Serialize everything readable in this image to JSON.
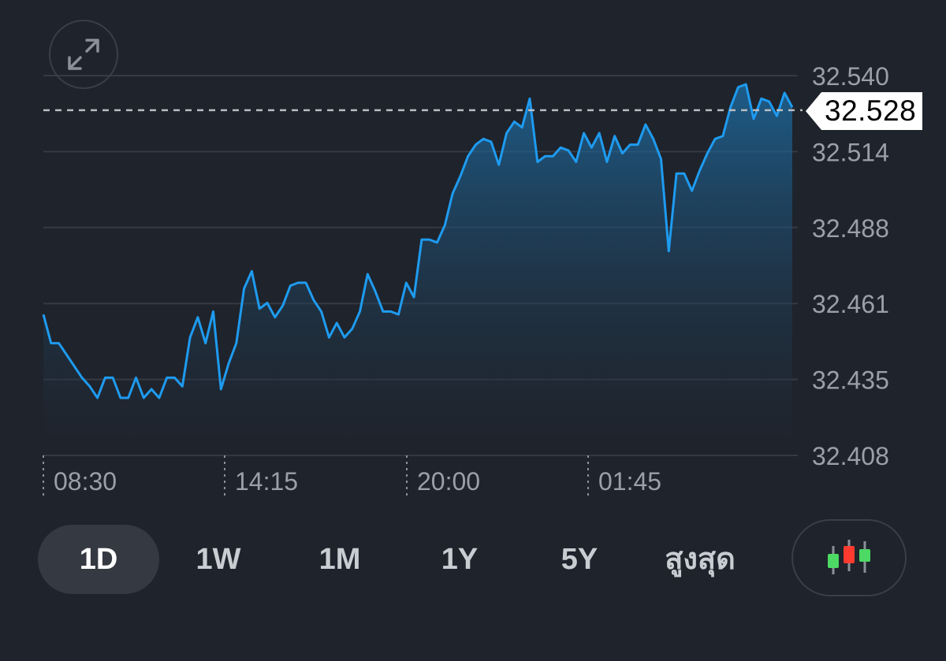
{
  "current_price": {
    "label": "32.528",
    "value": 32.528
  },
  "ranges": [
    {
      "label": "1D",
      "active": true
    },
    {
      "label": "1W",
      "active": false
    },
    {
      "label": "1M",
      "active": false
    },
    {
      "label": "1Y",
      "active": false
    },
    {
      "label": "5Y",
      "active": false
    },
    {
      "label": "สูงสุด",
      "active": false
    }
  ],
  "icons": {
    "expand": "expand-arrows-icon",
    "chart_type": "candlestick-icon"
  },
  "colors": {
    "background": "#1f232b",
    "line": "#1e9bf0",
    "grid": "#353a43",
    "axis_text": "#9aa0a8",
    "candle_up": "#4cd964",
    "candle_down": "#ff3b30"
  },
  "chart_data": {
    "type": "area",
    "title": "",
    "xlabel": "",
    "ylabel": "",
    "ylim": [
      32.408,
      32.54
    ],
    "y_ticks": [
      "32.540",
      "32.514",
      "32.488",
      "32.461",
      "32.435",
      "32.408"
    ],
    "x_ticks": [
      "08:30",
      "14:15",
      "20:00",
      "01:45"
    ],
    "reference_line": 32.528,
    "grid": true,
    "series": [
      {
        "values": [
          32.457,
          32.447,
          32.447,
          32.443,
          32.439,
          32.435,
          32.432,
          32.428,
          32.435,
          32.435,
          32.428,
          32.428,
          32.435,
          32.428,
          32.431,
          32.428,
          32.435,
          32.435,
          32.432,
          32.449,
          32.456,
          32.447,
          32.458,
          32.431,
          32.44,
          32.447,
          32.466,
          32.472,
          32.459,
          32.461,
          32.456,
          32.46,
          32.467,
          32.468,
          32.468,
          32.462,
          32.458,
          32.449,
          32.454,
          32.449,
          32.452,
          32.458,
          32.471,
          32.465,
          32.458,
          32.458,
          32.457,
          32.468,
          32.463,
          32.483,
          32.483,
          32.482,
          32.488,
          32.499,
          32.505,
          32.512,
          32.516,
          32.518,
          32.517,
          32.509,
          32.52,
          32.524,
          32.522,
          32.532,
          32.51,
          32.512,
          32.512,
          32.515,
          32.514,
          32.51,
          32.52,
          32.515,
          32.52,
          32.51,
          32.519,
          32.513,
          32.516,
          32.516,
          32.523,
          32.518,
          32.511,
          32.479,
          32.506,
          32.506,
          32.5,
          32.507,
          32.513,
          32.518,
          32.519,
          32.529,
          32.536,
          32.537,
          32.525,
          32.532,
          32.531,
          32.526,
          32.534,
          32.529
        ]
      }
    ]
  }
}
